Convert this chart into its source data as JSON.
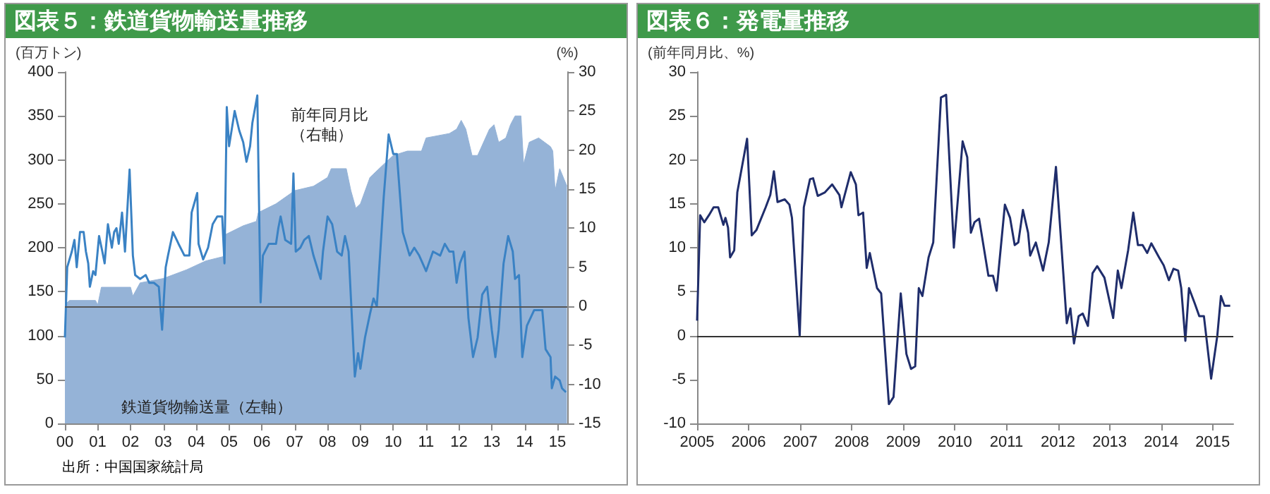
{
  "chart_data": [
    {
      "type": "area",
      "title": "図表５：鉄道貨物輸送量推移",
      "ylabel": "(百万トン)",
      "y2label": "(%)",
      "annotations": [
        "出所：中国国家統計局"
      ],
      "marker": "none",
      "xlim": [
        2000,
        2015.3
      ],
      "xticks": [
        {
          "value": 2000,
          "label": "00"
        },
        {
          "value": 2001,
          "label": "01"
        },
        {
          "value": 2002,
          "label": "02"
        },
        {
          "value": 2003,
          "label": "03"
        },
        {
          "value": 2004,
          "label": "04"
        },
        {
          "value": 2005,
          "label": "05"
        },
        {
          "value": 2006,
          "label": "06"
        },
        {
          "value": 2007,
          "label": "07"
        },
        {
          "value": 2008,
          "label": "08"
        },
        {
          "value": 2009,
          "label": "09"
        },
        {
          "value": 2010,
          "label": "10"
        },
        {
          "value": 2011,
          "label": "11"
        },
        {
          "value": 2012,
          "label": "12"
        },
        {
          "value": 2013,
          "label": "13"
        },
        {
          "value": 2014,
          "label": "14"
        },
        {
          "value": 2015,
          "label": "15"
        }
      ],
      "ylim": [
        0,
        400
      ],
      "yticks": [
        0,
        50,
        100,
        150,
        200,
        250,
        300,
        350,
        400
      ],
      "y2lim": [
        -15,
        30
      ],
      "y2ticks": [
        -15,
        -10,
        -5,
        0,
        5,
        10,
        15,
        20,
        25,
        30
      ],
      "ref_lines": [
        {
          "axis": "y2",
          "value": 0,
          "color": "#555555"
        }
      ],
      "series": [
        {
          "name": "鉄道貨物輸送量（左軸）",
          "color": "#95b3d7",
          "x": [
            2000,
            2000.14,
            2000.93,
            2001.0,
            2001.11,
            2002.0,
            2002.07,
            2002.29,
            2003.0,
            2003.71,
            2004.29,
            2004.83,
            2004.89,
            2005.43,
            2005.83,
            2005.89,
            2006.43,
            2007.0,
            2007.57,
            2008.0,
            2008.11,
            2008.57,
            2008.71,
            2008.86,
            2009.0,
            2009.29,
            2009.71,
            2010.0,
            2010.43,
            2010.86,
            2011.0,
            2011.71,
            2011.93,
            2012.07,
            2012.21,
            2012.4,
            2012.57,
            2012.93,
            2013.07,
            2013.21,
            2013.43,
            2013.57,
            2013.71,
            2013.89,
            2013.97,
            2014.14,
            2014.43,
            2014.79,
            2014.86,
            2014.93,
            2015.07,
            2015.29
          ],
          "values": [
            135,
            140,
            140,
            135,
            155,
            155,
            145,
            160,
            165,
            175,
            185,
            190,
            215,
            225,
            230,
            240,
            250,
            265,
            270,
            280,
            290,
            290,
            265,
            245,
            250,
            280,
            295,
            305,
            310,
            310,
            325,
            330,
            335,
            345,
            335,
            305,
            305,
            335,
            340,
            320,
            325,
            340,
            350,
            350,
            295,
            320,
            325,
            315,
            310,
            265,
            290,
            270
          ]
        },
        {
          "name": "前年同月比（右軸）",
          "type": "line",
          "axis": "y2",
          "color": "#3a82c4",
          "x": [
            2000.0,
            2000.07,
            2000.21,
            2000.29,
            2000.36,
            2000.46,
            2000.57,
            2000.64,
            2000.71,
            2000.76,
            2000.86,
            2000.93,
            2001.04,
            2001.14,
            2001.21,
            2001.31,
            2001.43,
            2001.5,
            2001.57,
            2001.64,
            2001.74,
            2001.83,
            2001.97,
            2002.07,
            2002.14,
            2002.29,
            2002.46,
            2002.57,
            2002.71,
            2002.86,
            2002.96,
            2003.07,
            2003.14,
            2003.29,
            2003.46,
            2003.64,
            2003.79,
            2003.86,
            2004.03,
            2004.07,
            2004.21,
            2004.36,
            2004.5,
            2004.64,
            2004.79,
            2004.86,
            2004.93,
            2005.0,
            2005.17,
            2005.31,
            2005.43,
            2005.53,
            2005.64,
            2005.71,
            2005.86,
            2005.96,
            2006.03,
            2006.21,
            2006.43,
            2006.5,
            2006.57,
            2006.71,
            2006.89,
            2006.96,
            2007.03,
            2007.17,
            2007.29,
            2007.43,
            2007.57,
            2007.79,
            2007.86,
            2008.0,
            2008.14,
            2008.29,
            2008.43,
            2008.53,
            2008.64,
            2008.83,
            2008.93,
            2009.0,
            2009.14,
            2009.29,
            2009.4,
            2009.5,
            2009.71,
            2009.86,
            2010.0,
            2010.11,
            2010.29,
            2010.5,
            2010.64,
            2010.79,
            2011.0,
            2011.21,
            2011.43,
            2011.57,
            2011.71,
            2011.83,
            2011.93,
            2012.03,
            2012.17,
            2012.29,
            2012.43,
            2012.57,
            2012.71,
            2012.86,
            2013.0,
            2013.11,
            2013.21,
            2013.36,
            2013.5,
            2013.64,
            2013.71,
            2013.83,
            2013.93,
            2014.07,
            2014.29,
            2014.43,
            2014.54,
            2014.64,
            2014.79,
            2014.83,
            2014.93,
            2015.07,
            2015.14,
            2015.26
          ],
          "values": [
            -4,
            5,
            7,
            8.5,
            5,
            9.5,
            9.5,
            7,
            5.5,
            2.5,
            4.5,
            4,
            9,
            7,
            5.5,
            10.5,
            7.5,
            9.5,
            10,
            8,
            12,
            7,
            17.5,
            6.5,
            4,
            3.5,
            4,
            3,
            3,
            2.5,
            -3,
            5,
            6.5,
            9.5,
            8,
            6.5,
            6.5,
            12,
            14.5,
            8,
            6,
            7.5,
            10.5,
            11.5,
            11.5,
            5.5,
            25.5,
            20.5,
            25,
            22.5,
            21,
            18.5,
            20.5,
            23.5,
            27,
            0.5,
            6.5,
            8,
            8,
            10,
            11.5,
            8.5,
            8,
            17,
            7,
            7.5,
            8.5,
            9,
            6.5,
            3.5,
            7,
            11.5,
            10.5,
            7,
            6.5,
            9,
            7,
            -9,
            -6,
            -8,
            -4,
            -1,
            1,
            0,
            14,
            22,
            19.5,
            19.5,
            9.5,
            6.5,
            7.5,
            6.5,
            4.5,
            7,
            6.5,
            8,
            7,
            7,
            3,
            5.5,
            7,
            -1.5,
            -6.5,
            -4,
            1.5,
            2.5,
            -3,
            -6.5,
            -3,
            5.5,
            9,
            7,
            3.5,
            4,
            -6.5,
            -2.5,
            -0.5,
            -0.5,
            -0.5,
            -5.5,
            -6.5,
            -10.5,
            -9,
            -9.5,
            -10.5,
            -11
          ]
        }
      ]
    },
    {
      "type": "line",
      "title": "図表６：発電量推移",
      "ylabel": "(前年同月比、%)",
      "marker": "none",
      "xlim": [
        2005,
        2015.4
      ],
      "xticks": [
        2005,
        2006,
        2007,
        2008,
        2009,
        2010,
        2011,
        2012,
        2013,
        2014,
        2015
      ],
      "ylim": [
        -10,
        30
      ],
      "yticks": [
        -10,
        -5,
        0,
        5,
        10,
        15,
        20,
        25,
        30
      ],
      "ref_lines": [
        {
          "axis": "y",
          "value": 0,
          "color": "#333333"
        }
      ],
      "series": [
        {
          "color": "#1f2d6b",
          "x": [
            2005.0,
            2005.06,
            2005.14,
            2005.23,
            2005.32,
            2005.41,
            2005.51,
            2005.55,
            2005.6,
            2005.64,
            2005.72,
            2005.78,
            2005.97,
            2006.06,
            2006.15,
            2006.33,
            2006.42,
            2006.49,
            2006.56,
            2006.7,
            2006.79,
            2006.84,
            2006.99,
            2007.07,
            2007.19,
            2007.25,
            2007.34,
            2007.48,
            2007.62,
            2007.76,
            2007.8,
            2007.98,
            2008.08,
            2008.13,
            2008.22,
            2008.29,
            2008.35,
            2008.49,
            2008.57,
            2008.72,
            2008.81,
            2008.95,
            2009.06,
            2009.15,
            2009.23,
            2009.3,
            2009.37,
            2009.49,
            2009.58,
            2009.73,
            2009.83,
            2009.98,
            2010.15,
            2010.24,
            2010.31,
            2010.38,
            2010.47,
            2010.65,
            2010.74,
            2010.81,
            2010.97,
            2011.07,
            2011.16,
            2011.23,
            2011.32,
            2011.42,
            2011.46,
            2011.57,
            2011.71,
            2011.82,
            2011.96,
            2012.17,
            2012.24,
            2012.31,
            2012.4,
            2012.48,
            2012.58,
            2012.67,
            2012.76,
            2012.9,
            2013.07,
            2013.16,
            2013.23,
            2013.36,
            2013.46,
            2013.55,
            2013.64,
            2013.73,
            2013.81,
            2013.96,
            2014.05,
            2014.15,
            2014.24,
            2014.33,
            2014.39,
            2014.47,
            2014.54,
            2014.65,
            2014.74,
            2014.83,
            2014.97,
            2015.09,
            2015.16,
            2015.23,
            2015.34
          ],
          "values": [
            1.7,
            13.7,
            12.9,
            13.7,
            14.6,
            14.6,
            12.6,
            13.4,
            12.3,
            8.9,
            9.7,
            16.3,
            22.4,
            11.4,
            12,
            14.6,
            16,
            18.7,
            15.2,
            15.5,
            14.9,
            13.4,
            0,
            14.6,
            17.8,
            17.9,
            15.9,
            16.3,
            17.2,
            16,
            14.6,
            18.6,
            17.2,
            13.7,
            14,
            7.7,
            9.4,
            5.4,
            4.8,
            -7.8,
            -7,
            4.8,
            -2.1,
            -3.8,
            -3.5,
            5.4,
            4.5,
            8.9,
            10.6,
            27.1,
            27.4,
            10,
            22.1,
            20.3,
            11.7,
            12.9,
            13.3,
            6.8,
            6.8,
            5.1,
            14.9,
            13.4,
            10.3,
            10.6,
            14.3,
            11.7,
            9.1,
            10.6,
            7.4,
            10.6,
            19.2,
            1.4,
            3.1,
            -0.9,
            2.2,
            2.5,
            1.1,
            7.1,
            7.9,
            6.6,
            2,
            7.4,
            5.4,
            9.7,
            14,
            10.3,
            10.3,
            9.4,
            10.5,
            8.9,
            8,
            6.3,
            7.6,
            7.4,
            5.4,
            -0.6,
            5.4,
            3.7,
            2.2,
            2.2,
            -4.9,
            0,
            4.5,
            3.4,
            3.4
          ]
        }
      ]
    }
  ]
}
